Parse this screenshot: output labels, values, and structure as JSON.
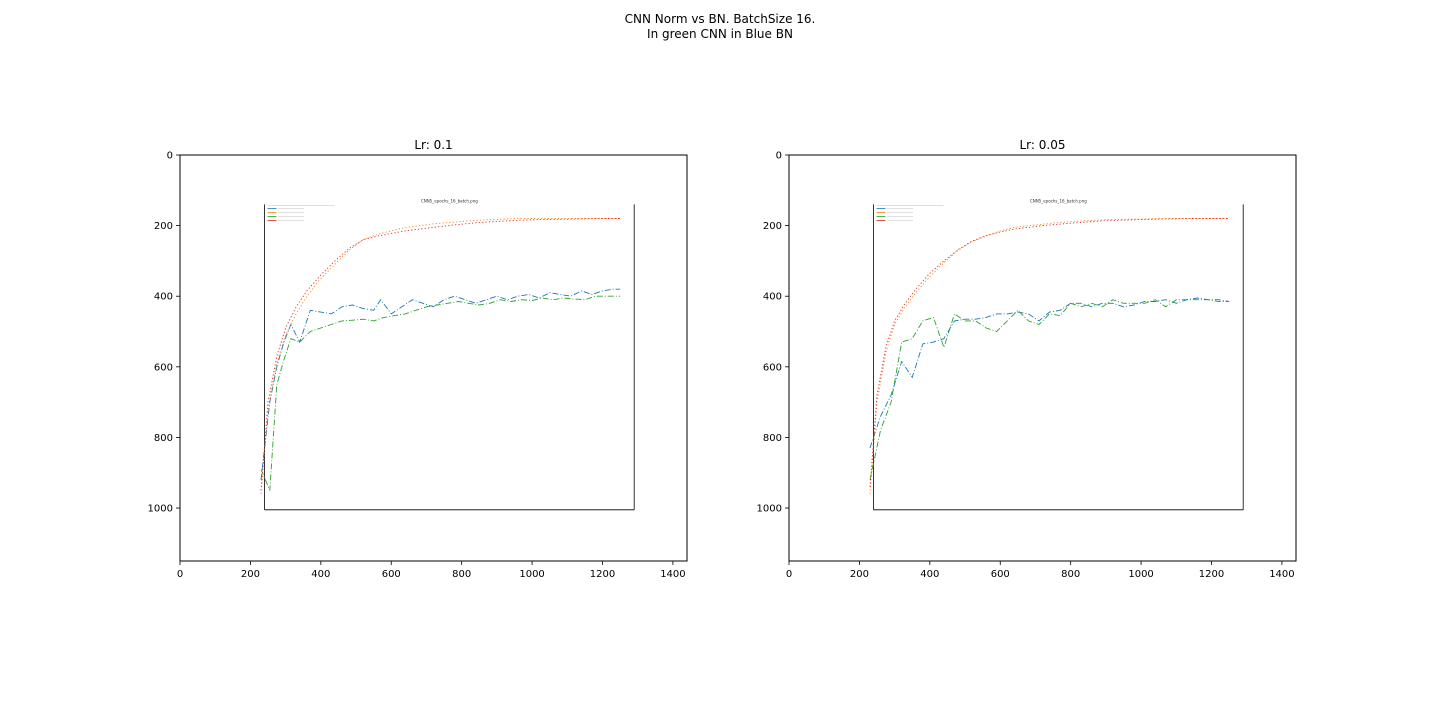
{
  "figure": {
    "title_line1": "CNN Norm vs BN. BatchSize 16.",
    "title_line2": "In green CNN in Blue BN"
  },
  "colors": {
    "blue": "#1f77b4",
    "green": "#2ca02c",
    "orange": "#ff7f0e",
    "red": "#d62728",
    "axis": "#000000"
  },
  "chart_data": [
    {
      "type": "line",
      "title": "Lr: 0.1",
      "xlabel": "",
      "ylabel": "",
      "xlim": [
        0,
        1440
      ],
      "ylim": [
        1150,
        0
      ],
      "xticks": [
        0,
        200,
        400,
        600,
        800,
        1000,
        1200,
        1400
      ],
      "yticks": [
        0,
        200,
        400,
        600,
        800,
        1000
      ],
      "grid": false,
      "embedded_image": {
        "title": "CNN5_epochs_16_batch.png",
        "extent": [
          178,
          1300,
          1005,
          140
        ],
        "legend_placement": "top-left",
        "series": [
          {
            "color": "blue",
            "style": "dashdot",
            "x": [
              230,
              255,
              275,
              295,
              315,
              340,
              370,
              400,
              430,
              460,
              490,
              520,
              550,
              570,
              600,
              630,
              660,
              690,
              720,
              750,
              780,
              810,
              840,
              870,
              900,
              930,
              960,
              990,
              1020,
              1050,
              1080,
              1110,
              1140,
              1170,
              1200,
              1230,
              1250
            ],
            "y": [
              920,
              700,
              600,
              530,
              480,
              530,
              440,
              445,
              450,
              430,
              425,
              435,
              440,
              410,
              450,
              430,
              410,
              420,
              430,
              410,
              400,
              410,
              420,
              410,
              400,
              410,
              400,
              395,
              405,
              390,
              395,
              400,
              385,
              395,
              385,
              380,
              380
            ]
          },
          {
            "color": "green",
            "style": "dashdot",
            "x": [
              230,
              255,
              275,
              295,
              315,
              340,
              370,
              400,
              430,
              460,
              490,
              520,
              550,
              580,
              610,
              640,
              670,
              700,
              730,
              760,
              790,
              820,
              850,
              880,
              910,
              940,
              970,
              1000,
              1030,
              1060,
              1090,
              1120,
              1150,
              1180,
              1210,
              1250
            ],
            "y": [
              890,
              950,
              650,
              580,
              520,
              530,
              500,
              490,
              480,
              470,
              468,
              465,
              470,
              460,
              455,
              450,
              440,
              430,
              425,
              420,
              415,
              420,
              425,
              420,
              410,
              415,
              410,
              412,
              405,
              410,
              405,
              408,
              410,
              400,
              400,
              400
            ]
          },
          {
            "color": "orange",
            "style": "dotted",
            "x": [
              230,
              250,
              275,
              300,
              330,
              360,
              400,
              440,
              480,
              520,
              560,
              600,
              640,
              680,
              720,
              780,
              840,
              900,
              960,
              1020,
              1080,
              1140,
              1200,
              1250
            ],
            "y": [
              960,
              720,
              590,
              510,
              450,
              400,
              350,
              310,
              270,
              240,
              225,
              215,
              205,
              200,
              195,
              190,
              185,
              182,
              180,
              180,
              180,
              180,
              180,
              180
            ]
          },
          {
            "color": "red",
            "style": "dotted",
            "x": [
              230,
              250,
              275,
              300,
              330,
              360,
              400,
              440,
              480,
              520,
              560,
              600,
              640,
              680,
              720,
              780,
              840,
              900,
              960,
              1020,
              1080,
              1140,
              1200,
              1250
            ],
            "y": [
              950,
              700,
              570,
              490,
              430,
              385,
              340,
              300,
              265,
              240,
              230,
              222,
              215,
              210,
              205,
              198,
              192,
              188,
              185,
              183,
              182,
              181,
              180,
              180
            ]
          }
        ]
      }
    },
    {
      "type": "line",
      "title": "Lr: 0.05",
      "xlabel": "",
      "ylabel": "",
      "xlim": [
        0,
        1440
      ],
      "ylim": [
        1150,
        0
      ],
      "xticks": [
        0,
        200,
        400,
        600,
        800,
        1000,
        1200,
        1400
      ],
      "yticks": [
        0,
        200,
        400,
        600,
        800,
        1000
      ],
      "grid": false,
      "embedded_image": {
        "title": "CNN5_epochs_16_batch.png",
        "extent": [
          178,
          1300,
          1005,
          140
        ],
        "legend_placement": "top-left",
        "series": [
          {
            "color": "blue",
            "style": "dashdot",
            "x": [
              230,
              260,
              290,
              320,
              350,
              380,
              410,
              440,
              470,
              500,
              530,
              560,
              590,
              620,
              650,
              680,
              710,
              740,
              770,
              800,
              830,
              860,
              890,
              920,
              950,
              980,
              1010,
              1040,
              1070,
              1100,
              1130,
              1160,
              1190,
              1220,
              1250
            ],
            "y": [
              830,
              740,
              680,
              585,
              630,
              535,
              530,
              520,
              470,
              465,
              465,
              460,
              450,
              450,
              445,
              450,
              470,
              445,
              440,
              420,
              420,
              430,
              420,
              420,
              430,
              425,
              415,
              415,
              410,
              420,
              410,
              405,
              410,
              410,
              415
            ]
          },
          {
            "color": "green",
            "style": "dashdot",
            "x": [
              230,
              260,
              290,
              320,
              350,
              380,
              410,
              440,
              470,
              500,
              530,
              560,
              590,
              620,
              650,
              680,
              710,
              740,
              770,
              800,
              830,
              860,
              890,
              920,
              950,
              980,
              1010,
              1040,
              1070,
              1100,
              1130,
              1160,
              1190,
              1220,
              1250
            ],
            "y": [
              920,
              780,
              700,
              530,
              520,
              470,
              460,
              545,
              450,
              470,
              470,
              490,
              500,
              470,
              440,
              470,
              480,
              450,
              455,
              420,
              430,
              420,
              430,
              410,
              420,
              420,
              420,
              410,
              430,
              410,
              410,
              410,
              410,
              415,
              415
            ]
          },
          {
            "color": "orange",
            "style": "dotted",
            "x": [
              230,
              250,
              275,
              300,
              330,
              360,
              400,
              440,
              480,
              520,
              560,
              600,
              640,
              680,
              720,
              780,
              840,
              900,
              960,
              1020,
              1080,
              1140,
              1200,
              1250
            ],
            "y": [
              960,
              700,
              560,
              480,
              430,
              390,
              345,
              305,
              270,
              245,
              230,
              215,
              205,
              200,
              196,
              190,
              186,
              183,
              182,
              181,
              180,
              180,
              180,
              180
            ]
          },
          {
            "color": "red",
            "style": "dotted",
            "x": [
              230,
              250,
              275,
              300,
              330,
              360,
              400,
              440,
              480,
              520,
              560,
              600,
              640,
              680,
              720,
              780,
              840,
              900,
              960,
              1020,
              1080,
              1140,
              1200,
              1250
            ],
            "y": [
              940,
              680,
              545,
              470,
              420,
              380,
              335,
              300,
              268,
              244,
              228,
              218,
              210,
              205,
              200,
              195,
              190,
              186,
              184,
              182,
              181,
              180,
              180,
              180
            ]
          }
        ]
      }
    }
  ]
}
